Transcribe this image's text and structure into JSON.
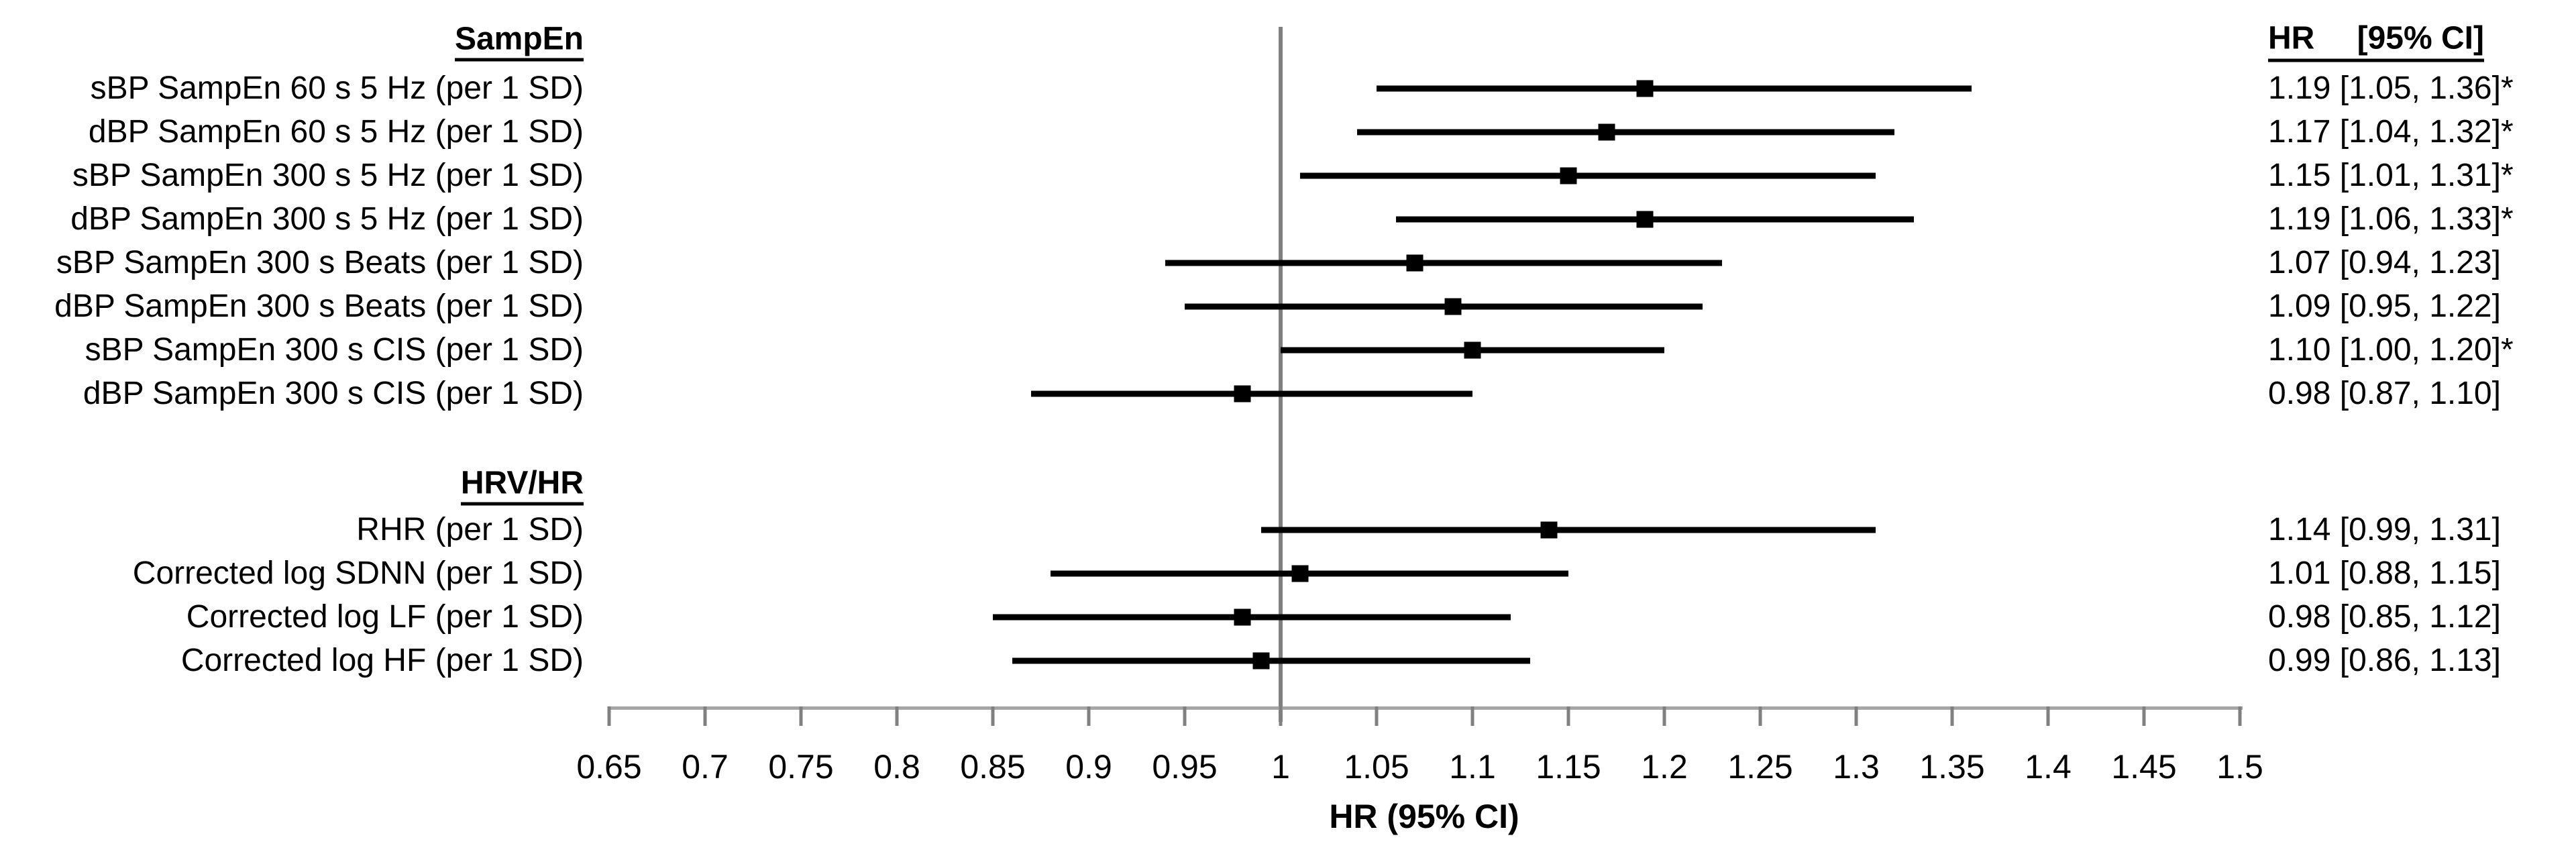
{
  "chart_data": {
    "type": "forest",
    "title": "",
    "xlabel": "HR (95% CI)",
    "xlim": [
      0.65,
      1.5
    ],
    "x_reference_line": 1,
    "grid": false,
    "tick_labels": [
      "0.65",
      "0.7",
      "0.75",
      "0.8",
      "0.85",
      "0.9",
      "0.95",
      "1",
      "1.05",
      "1.1",
      "1.15",
      "1.2",
      "1.25",
      "1.3",
      "1.35",
      "1.4",
      "1.45",
      "1.5"
    ],
    "value_header": {
      "hr": "HR",
      "ci": "[95% CI]"
    },
    "colors": {
      "marker": "#000000",
      "ci_line": "#000000",
      "reference_line": "#808080",
      "axis_line": "#a6a6a6",
      "text": "#000000"
    },
    "groups": [
      {
        "header": "SampEn",
        "rows": [
          {
            "label": "sBP SampEn 60 s 5 Hz (per 1 SD)",
            "hr": 1.19,
            "lo": 1.05,
            "hi": 1.36,
            "value_text": "1.19 [1.05, 1.36]*",
            "significant": true
          },
          {
            "label": "dBP SampEn 60 s 5 Hz (per 1 SD)",
            "hr": 1.17,
            "lo": 1.04,
            "hi": 1.32,
            "value_text": "1.17 [1.04, 1.32]*",
            "significant": true
          },
          {
            "label": "sBP SampEn 300 s 5 Hz (per 1 SD)",
            "hr": 1.15,
            "lo": 1.01,
            "hi": 1.31,
            "value_text": "1.15 [1.01, 1.31]*",
            "significant": true
          },
          {
            "label": "dBP SampEn 300 s 5 Hz (per 1 SD)",
            "hr": 1.19,
            "lo": 1.06,
            "hi": 1.33,
            "value_text": "1.19 [1.06, 1.33]*",
            "significant": true
          },
          {
            "label": "sBP SampEn 300 s Beats (per 1 SD)",
            "hr": 1.07,
            "lo": 0.94,
            "hi": 1.23,
            "value_text": "1.07 [0.94, 1.23]",
            "significant": false
          },
          {
            "label": "dBP SampEn 300 s Beats (per 1 SD)",
            "hr": 1.09,
            "lo": 0.95,
            "hi": 1.22,
            "value_text": "1.09 [0.95, 1.22]",
            "significant": false
          },
          {
            "label": "sBP SampEn 300 s CIS (per 1 SD)",
            "hr": 1.1,
            "lo": 1.0,
            "hi": 1.2,
            "value_text": "1.10 [1.00, 1.20]*",
            "significant": true
          },
          {
            "label": "dBP SampEn 300 s CIS (per 1 SD)",
            "hr": 0.98,
            "lo": 0.87,
            "hi": 1.1,
            "value_text": "0.98 [0.87, 1.10]",
            "significant": false
          }
        ]
      },
      {
        "header": "HRV/HR",
        "rows": [
          {
            "label": "RHR (per 1 SD)",
            "hr": 1.14,
            "lo": 0.99,
            "hi": 1.31,
            "value_text": "1.14 [0.99, 1.31]",
            "significant": false
          },
          {
            "label": "Corrected log SDNN (per 1 SD)",
            "hr": 1.01,
            "lo": 0.88,
            "hi": 1.15,
            "value_text": "1.01 [0.88, 1.15]",
            "significant": false
          },
          {
            "label": "Corrected log LF (per 1 SD)",
            "hr": 0.98,
            "lo": 0.85,
            "hi": 1.12,
            "value_text": "0.98 [0.85, 1.12]",
            "significant": false
          },
          {
            "label": "Corrected log HF (per 1 SD)",
            "hr": 0.99,
            "lo": 0.86,
            "hi": 1.13,
            "value_text": "0.99 [0.86, 1.13]",
            "significant": false
          }
        ]
      }
    ]
  }
}
